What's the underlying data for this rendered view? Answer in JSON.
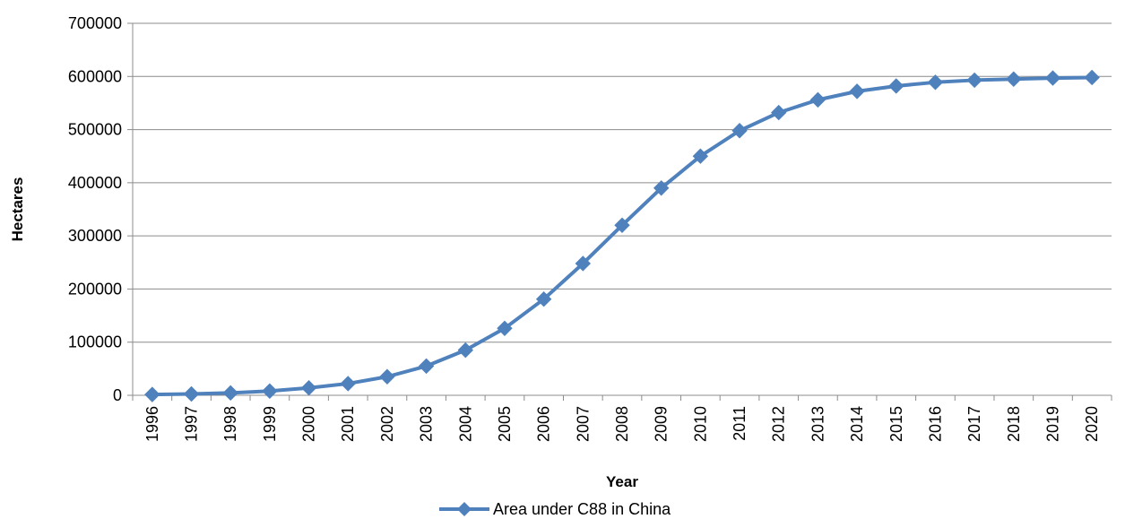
{
  "chart_data": {
    "type": "line",
    "title": "",
    "xlabel": "Year",
    "ylabel": "Hectares",
    "ylim": [
      0,
      700000
    ],
    "yticks": [
      0,
      100000,
      200000,
      300000,
      400000,
      500000,
      600000,
      700000
    ],
    "grid": true,
    "legend_position": "bottom",
    "categories": [
      "1996",
      "1997",
      "1998",
      "1999",
      "2000",
      "2001",
      "2002",
      "2003",
      "2004",
      "2005",
      "2006",
      "2007",
      "2008",
      "2009",
      "2010",
      "2011",
      "2012",
      "2013",
      "2014",
      "2015",
      "2016",
      "2017",
      "2018",
      "2019",
      "2020"
    ],
    "series": [
      {
        "name": "Area under C88 in China",
        "color": "#4F81BD",
        "marker": "diamond",
        "values": [
          1500,
          2500,
          4500,
          8000,
          14000,
          22000,
          35000,
          55000,
          85000,
          126000,
          181000,
          248000,
          320000,
          390000,
          450000,
          498000,
          532000,
          556000,
          572000,
          582000,
          589000,
          593000,
          595000,
          597000,
          598000
        ]
      }
    ]
  }
}
